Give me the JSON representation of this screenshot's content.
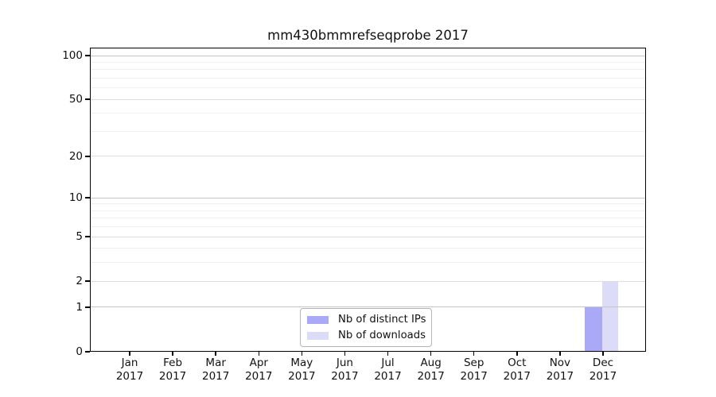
{
  "chart_data": {
    "type": "bar",
    "title": "mm430bmmrefseqprobe 2017",
    "x_categories": [
      "Jan",
      "Feb",
      "Mar",
      "Apr",
      "May",
      "Jun",
      "Jul",
      "Aug",
      "Sep",
      "Oct",
      "Nov",
      "Dec"
    ],
    "x_year": "2017",
    "series": [
      {
        "name": "Nb of distinct IPs",
        "color": "#a9a9f7",
        "values": [
          0,
          0,
          0,
          0,
          0,
          0,
          0,
          0,
          0,
          0,
          0,
          1
        ]
      },
      {
        "name": "Nb of downloads",
        "color": "#dcdcf9",
        "values": [
          0,
          0,
          0,
          0,
          0,
          0,
          0,
          0,
          0,
          0,
          0,
          2
        ]
      }
    ],
    "y_axis": {
      "scale": "log10(1+v)",
      "major_ticks": [
        0,
        1,
        2,
        5,
        10,
        20,
        50,
        100
      ],
      "minor_gridlines": [
        3,
        4,
        6,
        7,
        8,
        9,
        30,
        40,
        60,
        70,
        80,
        90
      ],
      "range": [
        0,
        100
      ]
    },
    "legend": {
      "position": "lower center",
      "entries": [
        "Nb of distinct IPs",
        "Nb of downloads"
      ]
    },
    "grid": true,
    "colors": {
      "decade_grid": "#c6c6c6",
      "major_grid": "#dddddd",
      "minor_grid": "#f0f0f0",
      "axis": "#000000"
    }
  }
}
